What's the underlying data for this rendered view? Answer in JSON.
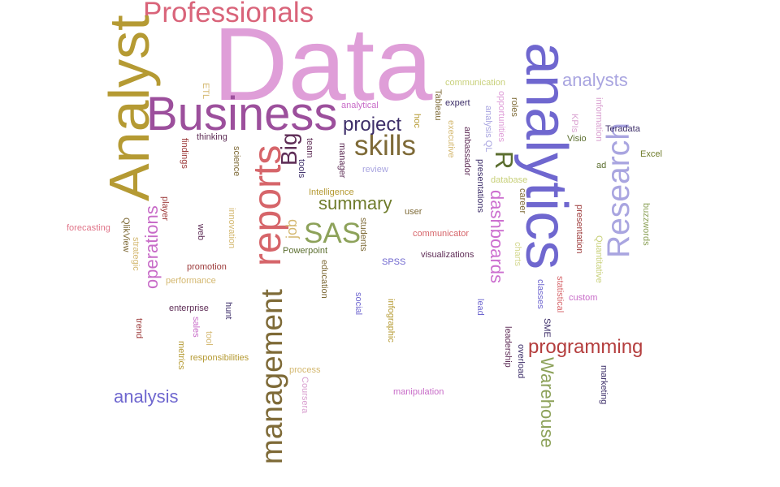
{
  "words": [
    {
      "id": "w-data",
      "text": "Data",
      "color": "#df9ed8"
    },
    {
      "id": "w-professionals",
      "text": "Professionals",
      "color": "#d9647a"
    },
    {
      "id": "w-business",
      "text": "Business",
      "color": "#9c4f9c"
    },
    {
      "id": "w-analyst",
      "text": "Analyst",
      "color": "#b59a33"
    },
    {
      "id": "w-analytics",
      "text": "analytics",
      "color": "#6f67cf"
    },
    {
      "id": "w-reports",
      "text": "reports",
      "color": "#d6656a"
    },
    {
      "id": "w-management",
      "text": "management",
      "color": "#7e6a37"
    },
    {
      "id": "w-research",
      "text": "Research",
      "color": "#a9a5e0"
    },
    {
      "id": "w-skills",
      "text": "skills",
      "color": "#7e6a37"
    },
    {
      "id": "w-project",
      "text": "project",
      "color": "#3d2e69"
    },
    {
      "id": "w-analysts",
      "text": "analysts",
      "color": "#a9a5e0"
    },
    {
      "id": "w-sas",
      "text": "SAS",
      "color": "#8da25a"
    },
    {
      "id": "w-r",
      "text": "R",
      "color": "#5b6e2f"
    },
    {
      "id": "w-big",
      "text": "Big",
      "color": "#5f2e57"
    },
    {
      "id": "w-summary",
      "text": "summary",
      "color": "#6f7c2b"
    },
    {
      "id": "w-dashboards",
      "text": "dashboards",
      "color": "#cc6fcf"
    },
    {
      "id": "w-operations",
      "text": "operations",
      "color": "#c86cc8"
    },
    {
      "id": "w-programming",
      "text": "programming",
      "color": "#b43e3e"
    },
    {
      "id": "w-warehouse",
      "text": "Warehouse",
      "color": "#8da25a"
    },
    {
      "id": "w-analysis",
      "text": "analysis",
      "color": "#6f67cf"
    },
    {
      "id": "w-job",
      "text": "job",
      "color": "#d4b870"
    },
    {
      "id": "w-communication",
      "text": "communication",
      "color": "#c8d07a"
    },
    {
      "id": "w-expert",
      "text": "expert",
      "color": "#3d2e69"
    },
    {
      "id": "w-analytical",
      "text": "analytical",
      "color": "#c86cc8"
    },
    {
      "id": "w-thinking",
      "text": "thinking",
      "color": "#5f2e57"
    },
    {
      "id": "w-etl",
      "text": "ETL",
      "color": "#d4b870"
    },
    {
      "id": "w-findings",
      "text": "findings",
      "color": "#9c3a3a"
    },
    {
      "id": "w-review",
      "text": "review",
      "color": "#a9a5e0"
    },
    {
      "id": "w-team",
      "text": "team",
      "color": "#5f2e57"
    },
    {
      "id": "w-manager",
      "text": "manager",
      "color": "#5f2e57"
    },
    {
      "id": "w-science",
      "text": "science",
      "color": "#7e6a37"
    },
    {
      "id": "w-tools",
      "text": "tools",
      "color": "#3d2e69"
    },
    {
      "id": "w-intelligence",
      "text": "Intelligence",
      "color": "#b59a33"
    },
    {
      "id": "w-user",
      "text": "user",
      "color": "#7e6a37"
    },
    {
      "id": "w-tableau",
      "text": "Tableau",
      "color": "#7e6a37"
    },
    {
      "id": "w-hoc",
      "text": "hoc",
      "color": "#b59a33"
    },
    {
      "id": "w-executive",
      "text": "executive",
      "color": "#d4b870"
    },
    {
      "id": "w-ambassador",
      "text": "ambassador",
      "color": "#5f2e57"
    },
    {
      "id": "w-analysis-ql",
      "text": "analysis QL",
      "color": "#a9a5e0"
    },
    {
      "id": "w-opportunities",
      "text": "opportunities",
      "color": "#df9ed8"
    },
    {
      "id": "w-roles",
      "text": "roles",
      "color": "#7e6a37"
    },
    {
      "id": "w-presentations",
      "text": "presentations",
      "color": "#3d2e69"
    },
    {
      "id": "w-database",
      "text": "database",
      "color": "#c8d07a"
    },
    {
      "id": "w-career",
      "text": "career",
      "color": "#7e6a37"
    },
    {
      "id": "w-kpis",
      "text": "KPIs",
      "color": "#d9a0d0"
    },
    {
      "id": "w-information",
      "text": "information",
      "color": "#d9a0d0"
    },
    {
      "id": "w-teradata",
      "text": "Teradata",
      "color": "#3d2e69"
    },
    {
      "id": "w-visio",
      "text": "Visio",
      "color": "#5b6e2f"
    },
    {
      "id": "w-excel",
      "text": "Excel",
      "color": "#6f7c2b"
    },
    {
      "id": "w-ad",
      "text": "ad",
      "color": "#5b6e2f"
    },
    {
      "id": "w-presentation",
      "text": "presentation",
      "color": "#9c3a3a"
    },
    {
      "id": "w-buzzwords",
      "text": "buzzwords",
      "color": "#8da25a"
    },
    {
      "id": "w-quantitative",
      "text": "Quantitative",
      "color": "#c8d07a"
    },
    {
      "id": "w-forecasting",
      "text": "forecasting",
      "color": "#e0768a"
    },
    {
      "id": "w-qlikview",
      "text": "QlikView",
      "color": "#7e6a37"
    },
    {
      "id": "w-strategic",
      "text": "strategic",
      "color": "#d4b870"
    },
    {
      "id": "w-player",
      "text": "player",
      "color": "#9c3a3a"
    },
    {
      "id": "w-web",
      "text": "web",
      "color": "#5f2e57"
    },
    {
      "id": "w-innovation",
      "text": "innovation",
      "color": "#d4b870"
    },
    {
      "id": "w-students",
      "text": "students",
      "color": "#7e6a37"
    },
    {
      "id": "w-powerpoint",
      "text": "Powerpoint",
      "color": "#5b6e2f"
    },
    {
      "id": "w-education",
      "text": "education",
      "color": "#7e6a37"
    },
    {
      "id": "w-spss",
      "text": "SPSS",
      "color": "#6f67cf"
    },
    {
      "id": "w-communicator",
      "text": "communicator",
      "color": "#d6656a"
    },
    {
      "id": "w-visualizations",
      "text": "visualizations",
      "color": "#5f2e57"
    },
    {
      "id": "w-charts",
      "text": "charts",
      "color": "#d4d890"
    },
    {
      "id": "w-classes",
      "text": "classes",
      "color": "#6f67cf"
    },
    {
      "id": "w-statistical",
      "text": "statistical",
      "color": "#d6656a"
    },
    {
      "id": "w-custom",
      "text": "custom",
      "color": "#c86cc8"
    },
    {
      "id": "w-promotion",
      "text": "promotion",
      "color": "#9c3a3a"
    },
    {
      "id": "w-performance",
      "text": "performance",
      "color": "#d4b870"
    },
    {
      "id": "w-enterprise",
      "text": "enterprise",
      "color": "#5f2e57"
    },
    {
      "id": "w-hunt",
      "text": "hunt",
      "color": "#3d2e69"
    },
    {
      "id": "w-sales",
      "text": "sales",
      "color": "#c86cc8"
    },
    {
      "id": "w-tool",
      "text": "tool",
      "color": "#d4b870"
    },
    {
      "id": "w-trend",
      "text": "trend",
      "color": "#9c3a3a"
    },
    {
      "id": "w-metrics",
      "text": "metrics",
      "color": "#b59a33"
    },
    {
      "id": "w-responsibilities",
      "text": "responsibilities",
      "color": "#b59a33"
    },
    {
      "id": "w-social",
      "text": "social",
      "color": "#6f67cf"
    },
    {
      "id": "w-infographic",
      "text": "infographic",
      "color": "#b59a33"
    },
    {
      "id": "w-lead",
      "text": "lead",
      "color": "#6f67cf"
    },
    {
      "id": "w-leadership",
      "text": "leadership",
      "color": "#5f2e57"
    },
    {
      "id": "w-overload",
      "text": "overload",
      "color": "#3d2e69"
    },
    {
      "id": "w-sme",
      "text": "SME",
      "color": "#3d2e69"
    },
    {
      "id": "w-marketing",
      "text": "marketing",
      "color": "#3d2e69"
    },
    {
      "id": "w-process",
      "text": "process",
      "color": "#d4b870"
    },
    {
      "id": "w-coursera",
      "text": "Coursera",
      "color": "#d9a0d0"
    },
    {
      "id": "w-manipulation",
      "text": "manipulation",
      "color": "#c86cc8"
    }
  ]
}
